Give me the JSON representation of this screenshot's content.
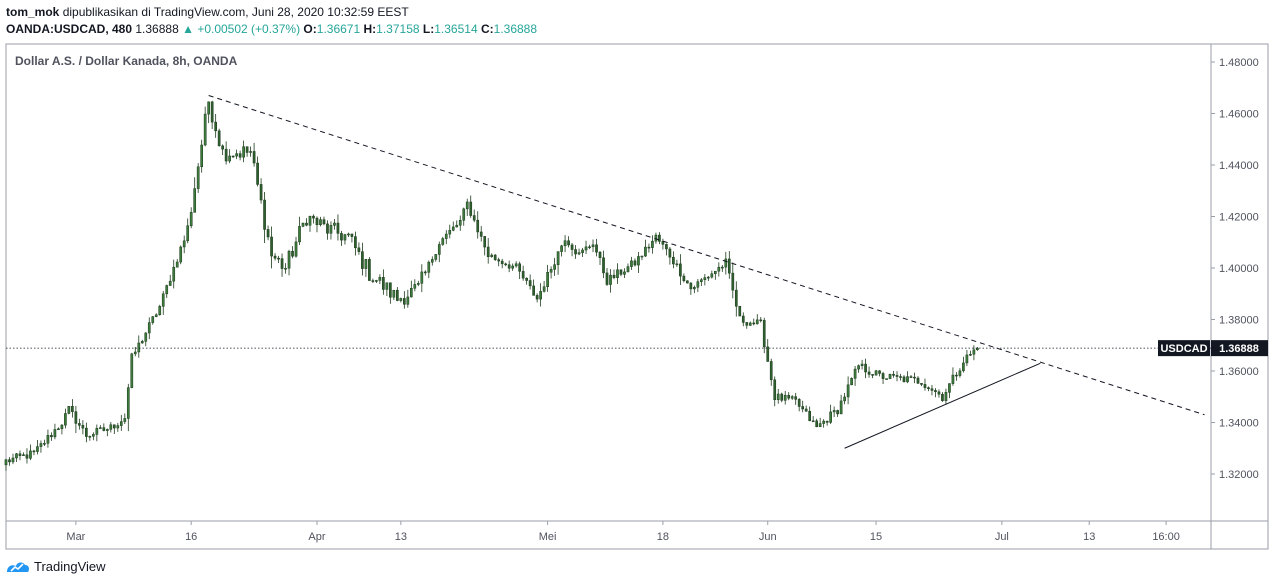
{
  "header": {
    "author": "tom_mok",
    "published": "dipublikasikan di TradingView.com, Juni 28, 2020 10:32:59 EEST",
    "symbol": "OANDA:USDCAD, 480",
    "last": "1.36888",
    "change": "▲ +0.00502 (+0.37%)",
    "o_label": "O:",
    "o_value": "1.36671",
    "h_label": "H:",
    "h_value": "1.37158",
    "l_label": "L:",
    "l_value": "1.36514",
    "c_label": "C:",
    "c_value": "1.36888"
  },
  "footer": {
    "brand": "TradingView"
  },
  "colors": {
    "up": "#26a69a",
    "candle_fill": "#3d7b3d",
    "candle_wick": "#1b3a1b",
    "text": "#131722"
  },
  "chart_data": {
    "type": "candlestick",
    "title": "Dollar A.S. / Dollar Kanada, 8h, OANDA",
    "ylim": [
      1.31,
      1.49
    ],
    "yticks": [
      "1.48000",
      "1.46000",
      "1.44000",
      "1.42000",
      "1.40000",
      "1.38000",
      "1.36000",
      "1.34000",
      "1.32000"
    ],
    "ytick_values": [
      1.48,
      1.46,
      1.44,
      1.42,
      1.4,
      1.38,
      1.36,
      1.34,
      1.32
    ],
    "xticks": [
      {
        "label": "Mar",
        "idx": 20
      },
      {
        "label": "16",
        "idx": 53
      },
      {
        "label": "Apr",
        "idx": 89
      },
      {
        "label": "13",
        "idx": 113
      },
      {
        "label": "Mei",
        "idx": 155
      },
      {
        "label": "18",
        "idx": 188
      },
      {
        "label": "Jun",
        "idx": 218
      },
      {
        "label": "15",
        "idx": 249
      },
      {
        "label": "Jul",
        "idx": 285
      },
      {
        "label": "13",
        "idx": 310
      },
      {
        "label": "16:00",
        "idx": 332
      }
    ],
    "last_price": 1.36888,
    "last_label": "USDCAD",
    "last_value": "1.36888",
    "close_path": [
      [
        0,
        1.325
      ],
      [
        8,
        1.328
      ],
      [
        16,
        1.34
      ],
      [
        18,
        1.345
      ],
      [
        23,
        1.335
      ],
      [
        30,
        1.338
      ],
      [
        34,
        1.342
      ],
      [
        36,
        1.365
      ],
      [
        44,
        1.385
      ],
      [
        52,
        1.415
      ],
      [
        58,
        1.465
      ],
      [
        62,
        1.445
      ],
      [
        70,
        1.445
      ],
      [
        76,
        1.405
      ],
      [
        80,
        1.4
      ],
      [
        86,
        1.42
      ],
      [
        92,
        1.415
      ],
      [
        98,
        1.412
      ],
      [
        104,
        1.398
      ],
      [
        112,
        1.388
      ],
      [
        118,
        1.392
      ],
      [
        124,
        1.41
      ],
      [
        130,
        1.418
      ],
      [
        132,
        1.425
      ],
      [
        138,
        1.405
      ],
      [
        146,
        1.4
      ],
      [
        152,
        1.388
      ],
      [
        160,
        1.412
      ],
      [
        164,
        1.405
      ],
      [
        168,
        1.41
      ],
      [
        172,
        1.395
      ],
      [
        180,
        1.402
      ],
      [
        186,
        1.412
      ],
      [
        190,
        1.405
      ],
      [
        196,
        1.392
      ],
      [
        202,
        1.398
      ],
      [
        206,
        1.402
      ],
      [
        210,
        1.38
      ],
      [
        216,
        1.378
      ],
      [
        220,
        1.35
      ],
      [
        226,
        1.348
      ],
      [
        232,
        1.338
      ],
      [
        238,
        1.345
      ],
      [
        244,
        1.362
      ],
      [
        250,
        1.358
      ],
      [
        256,
        1.357
      ],
      [
        262,
        1.356
      ],
      [
        268,
        1.35
      ],
      [
        274,
        1.364
      ],
      [
        278,
        1.369
      ]
    ],
    "candle_count": 279,
    "trendlines": [
      {
        "name": "resistance-line",
        "style": "dashed",
        "from": {
          "idx": 58,
          "price": 1.467
        },
        "to": {
          "idx": 343,
          "price": 1.343
        }
      },
      {
        "name": "support-line",
        "style": "solid",
        "from": {
          "idx": 240,
          "price": 1.33
        },
        "to": {
          "idx": 296,
          "price": 1.363
        }
      }
    ]
  }
}
